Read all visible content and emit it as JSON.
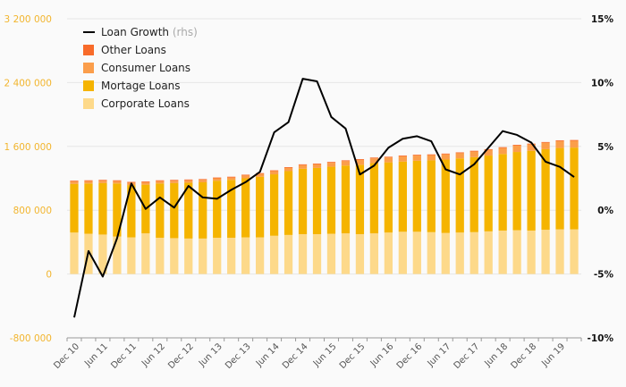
{
  "chart_data": {
    "type": "bar",
    "stacked": true,
    "x": [
      "Dec 10",
      "Mar 11",
      "Jun 11",
      "Sep 11",
      "Dec 11",
      "Mar 12",
      "Jun 12",
      "Sep 12",
      "Dec 12",
      "Mar 13",
      "Jun 13",
      "Sep 13",
      "Dec 13",
      "Mar 14",
      "Jun 14",
      "Sep 14",
      "Dec 14",
      "Mar 15",
      "Jun 15",
      "Sep 15",
      "Dec 15",
      "Mar 16",
      "Jun 16",
      "Sep 16",
      "Dec 16",
      "Mar 17",
      "Jun 17",
      "Sep 17",
      "Dec 17",
      "Mar 18",
      "Jun 18",
      "Sep 18",
      "Dec 18",
      "Mar 19",
      "Jun 19",
      "Sep 19"
    ],
    "x_tick_labels": [
      "Dec 10",
      "Jun 11",
      "Dec 11",
      "Jun 12",
      "Dec 12",
      "Jun 13",
      "Dec 13",
      "Jun 14",
      "Dec 14",
      "Jun 15",
      "Dec 15",
      "Jun 16",
      "Dec 16",
      "Jun 17",
      "Dec 17",
      "Jun 18",
      "Dec 18",
      "Jun 19"
    ],
    "series": [
      {
        "name": "Corporate Loans",
        "color": "#fdd98a",
        "values": [
          520000,
          505000,
          495000,
          470000,
          460000,
          510000,
          455000,
          450000,
          445000,
          445000,
          455000,
          455000,
          460000,
          460000,
          480000,
          490000,
          500000,
          500000,
          505000,
          510000,
          500000,
          510000,
          520000,
          530000,
          530000,
          525000,
          515000,
          520000,
          525000,
          535000,
          545000,
          550000,
          545000,
          555000,
          560000,
          560000
        ]
      },
      {
        "name": "Mortage Loans",
        "color": "#f5b400",
        "values": [
          610000,
          630000,
          645000,
          665000,
          655000,
          610000,
          680000,
          690000,
          700000,
          705000,
          715000,
          725000,
          740000,
          760000,
          770000,
          800000,
          820000,
          830000,
          840000,
          850000,
          870000,
          880000,
          880000,
          880000,
          890000,
          900000,
          920000,
          930000,
          940000,
          950000,
          960000,
          980000,
          1000000,
          1010000,
          1020000,
          1025000
        ]
      },
      {
        "name": "Consumer Loans",
        "color": "#fb9e4b",
        "values": [
          30000,
          30000,
          30000,
          30000,
          30000,
          30000,
          30000,
          30000,
          30000,
          30000,
          30000,
          30000,
          35000,
          35000,
          40000,
          40000,
          45000,
          45000,
          50000,
          55000,
          60000,
          60000,
          60000,
          65000,
          65000,
          65000,
          65000,
          65000,
          70000,
          70000,
          75000,
          80000,
          80000,
          80000,
          85000,
          85000
        ]
      },
      {
        "name": "Other Loans",
        "color": "#f86b2a",
        "values": [
          10000,
          10000,
          10000,
          10000,
          10000,
          10000,
          10000,
          10000,
          10000,
          10000,
          10000,
          10000,
          10000,
          10000,
          10000,
          10000,
          10000,
          10000,
          10000,
          10000,
          10000,
          10000,
          10000,
          10000,
          10000,
          10000,
          10000,
          10000,
          10000,
          10000,
          10000,
          10000,
          10000,
          10000,
          10000,
          10000
        ]
      }
    ],
    "line_series": {
      "name": "Loan Growth (rhs)",
      "axis": "right",
      "color": "#000000",
      "x_start_offset": -1,
      "values": [
        -8.4,
        -3.2,
        -5.2,
        -2.2,
        2.1,
        0.1,
        1.0,
        0.2,
        1.9,
        1.0,
        0.9,
        1.6,
        2.2,
        3.0,
        6.1,
        6.9,
        10.3,
        10.1,
        7.3,
        6.4,
        2.8,
        3.5,
        4.9,
        5.6,
        5.8,
        5.4,
        3.2,
        2.8,
        3.6,
        4.9,
        6.2,
        5.9,
        5.3,
        3.8,
        3.4,
        2.6
      ]
    },
    "y_left": {
      "ticks": [
        "-800 000",
        "0",
        "800 000",
        "1 600 000",
        "2 400 000",
        "3 200 000"
      ],
      "min": -800000,
      "max": 3200000
    },
    "y_right": {
      "ticks": [
        "-10%",
        "-5%",
        "0%",
        "5%",
        "10%",
        "15%"
      ],
      "min": -10,
      "max": 15
    },
    "legend": {
      "placement": "top-left",
      "items": [
        {
          "label": "Loan Growth",
          "sub": "(rhs)",
          "type": "line",
          "color": "#000000"
        },
        {
          "label": "Other Loans",
          "type": "box",
          "color": "#f86b2a"
        },
        {
          "label": "Consumer Loans",
          "type": "box",
          "color": "#fb9e4b"
        },
        {
          "label": "Mortage Loans",
          "type": "box",
          "color": "#f5b400"
        },
        {
          "label": "Corporate Loans",
          "type": "box",
          "color": "#fdd98a"
        }
      ]
    },
    "grid": true
  }
}
